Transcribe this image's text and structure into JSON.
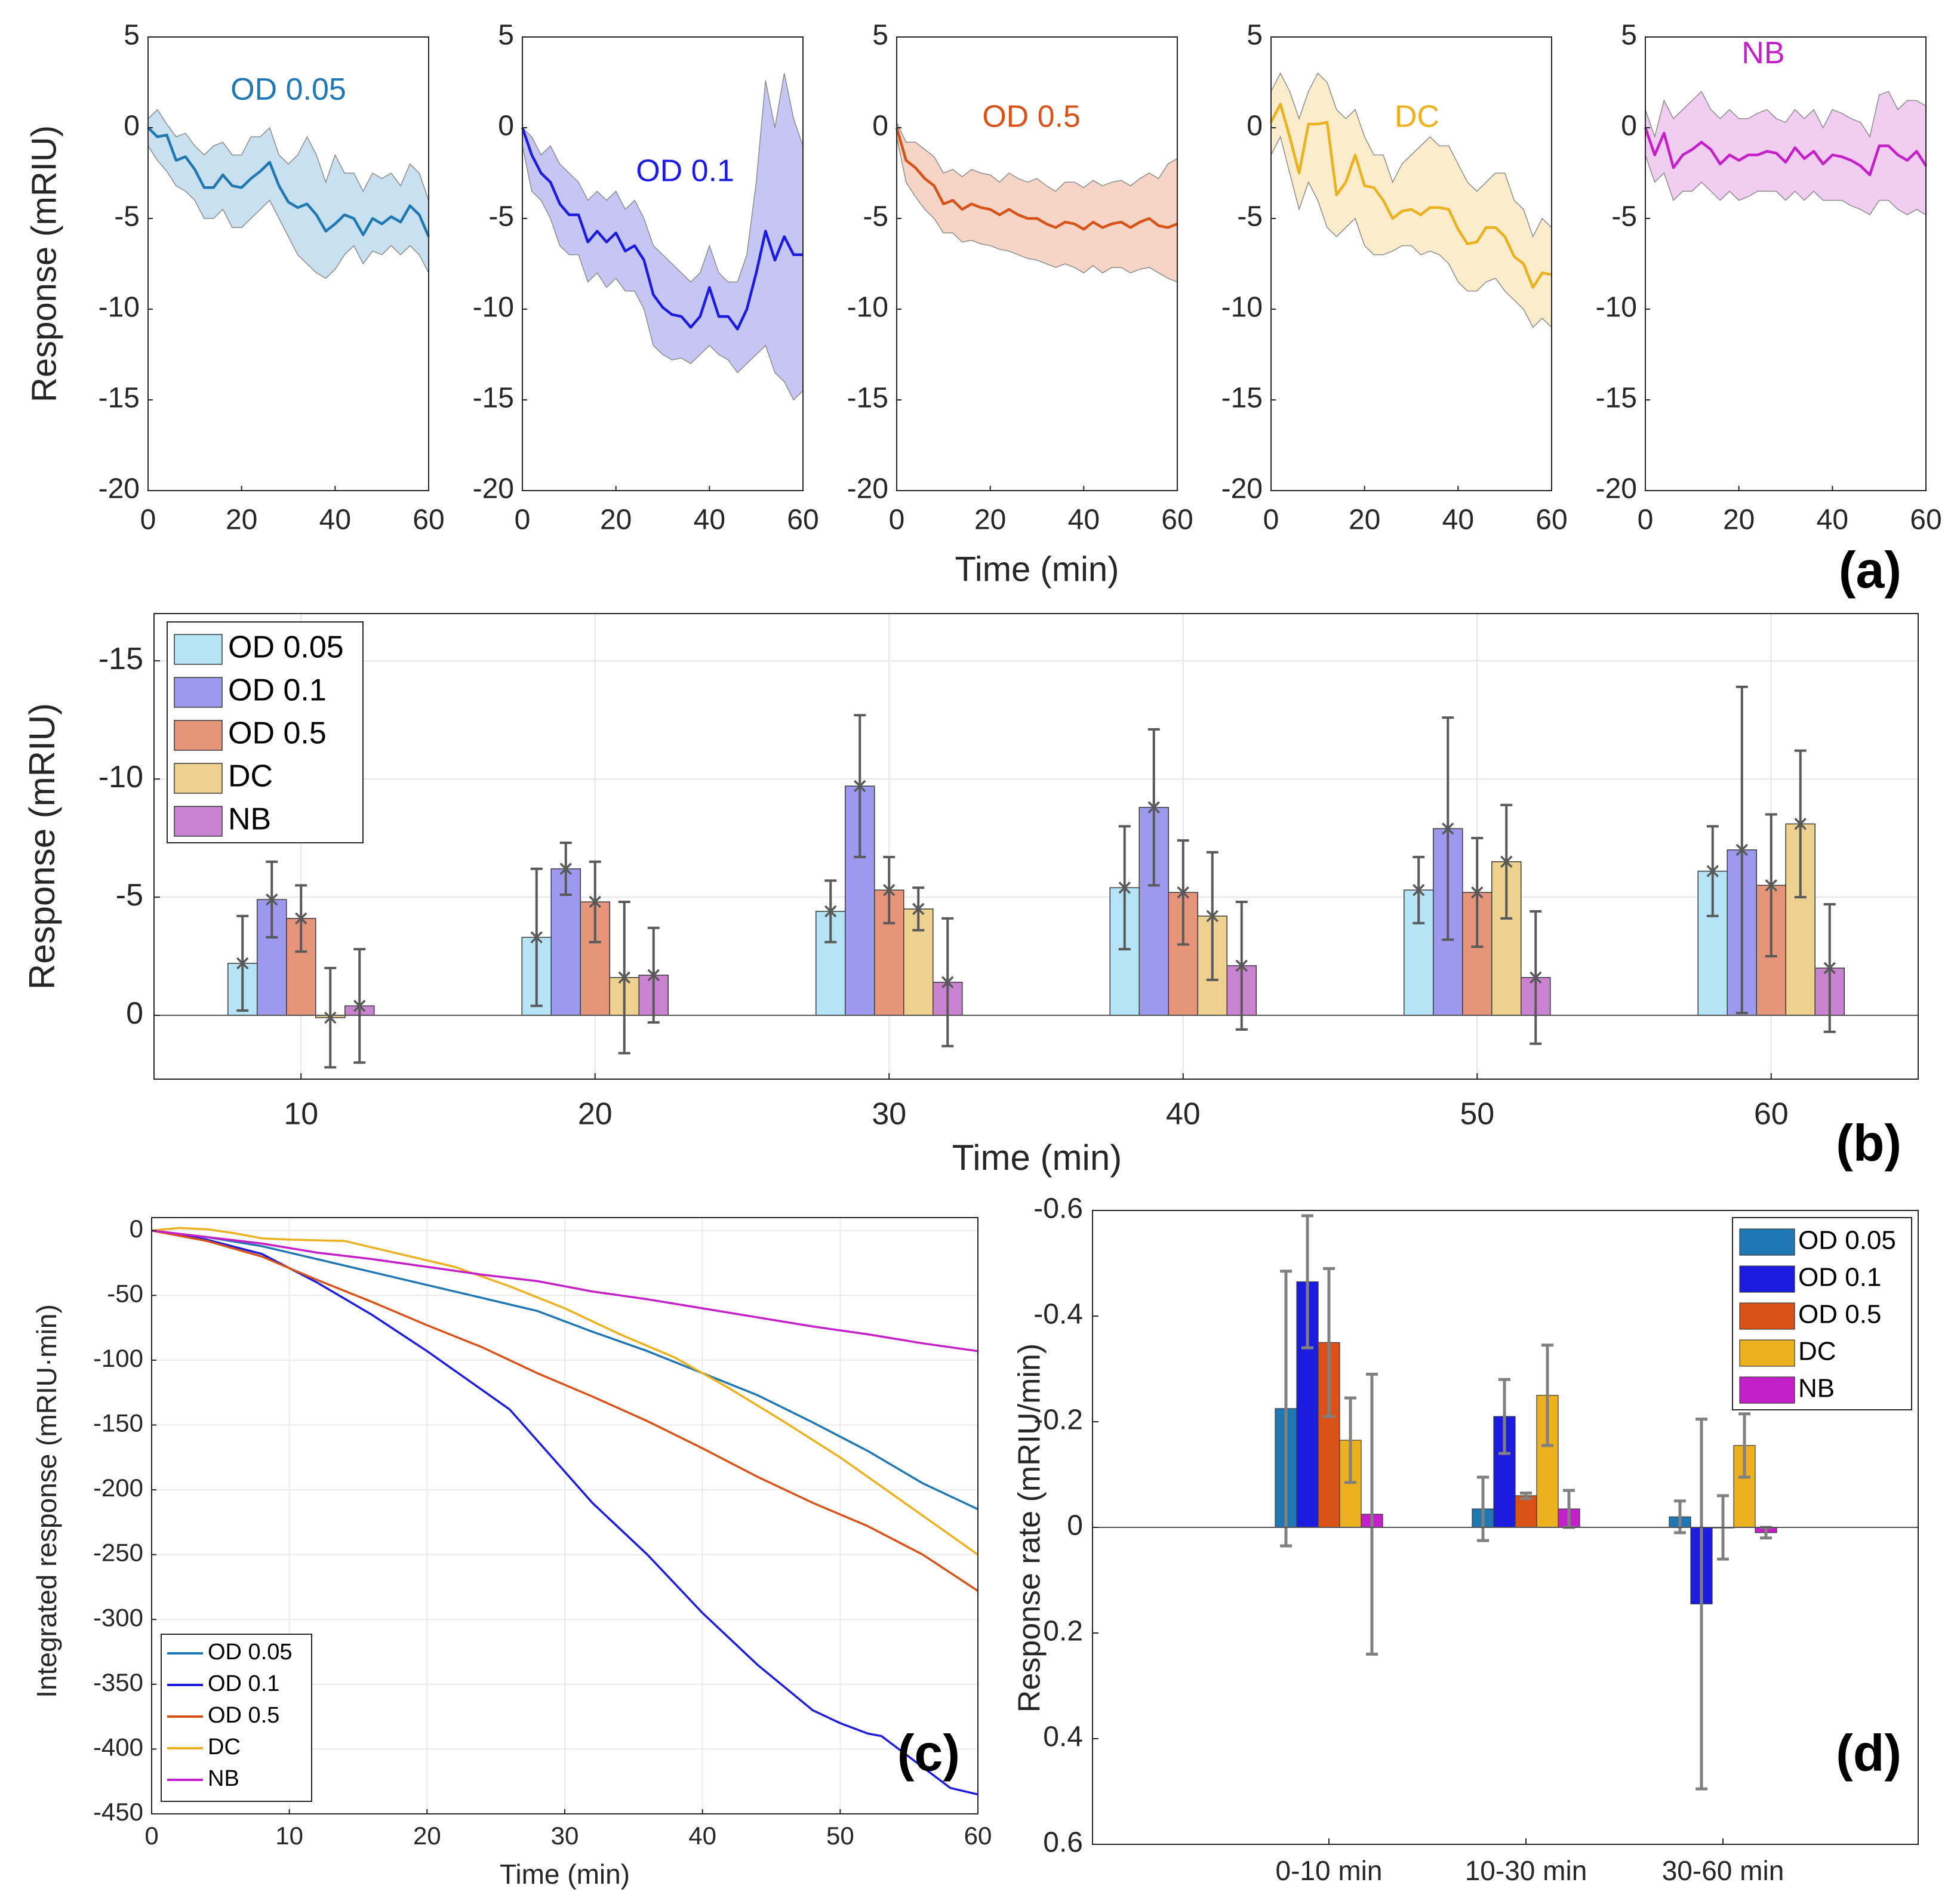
{
  "colors": {
    "OD 0.05": "#1f78b4",
    "OD 0.1": "#1c1ce0",
    "OD 0.5": "#d95319",
    "DC": "#edb120",
    "NB": "#c51fc9",
    "lightB": {
      "OD 0.05": "#b5e4f7",
      "OD 0.1": "#9c99ef",
      "OD 0.5": "#e6957a",
      "DC": "#efd18f",
      "NB": "#c983d0"
    },
    "bandA": {
      "OD 0.05": "#c8e0ef",
      "OD 0.1": "#c6c6f5",
      "OD 0.5": "#f6d5c7",
      "DC": "#fbeccb",
      "NB": "#f2cdf2"
    },
    "errB": "#595959",
    "errD": "#808080"
  },
  "chart_data": [
    {
      "panel": "a",
      "type": "line",
      "panel_label": "(a)",
      "xlabel": "Time (min)",
      "ylabel": "Response (mRIU)",
      "xlim": [
        0,
        60
      ],
      "ylim": [
        -20,
        5
      ],
      "xticks": [
        0,
        20,
        40,
        60
      ],
      "yticks": [
        5,
        0,
        -5,
        -10,
        -15,
        -20
      ],
      "x": [
        0,
        2,
        4,
        6,
        8,
        10,
        12,
        14,
        16,
        18,
        20,
        22,
        24,
        26,
        28,
        30,
        32,
        34,
        36,
        38,
        40,
        42,
        44,
        46,
        48,
        50,
        52,
        54,
        56,
        58,
        60
      ],
      "series": [
        {
          "name": "OD 0.05",
          "mean": [
            0,
            -0.5,
            -0.4,
            -1.8,
            -1.6,
            -2.3,
            -3.3,
            -3.3,
            -2.6,
            -3.2,
            -3.3,
            -2.8,
            -2.4,
            -1.9,
            -3.2,
            -4.1,
            -4.4,
            -4.2,
            -4.8,
            -5.7,
            -5.3,
            -4.8,
            -5.0,
            -5.9,
            -5.0,
            -5.3,
            -4.9,
            -5.2,
            -4.3,
            -4.8,
            -6.0
          ],
          "lower": [
            -1.0,
            -1.8,
            -2.4,
            -3.2,
            -3.5,
            -4.0,
            -5.0,
            -5.0,
            -4.5,
            -5.5,
            -5.5,
            -5.0,
            -4.5,
            -4.0,
            -5.0,
            -6.0,
            -7.0,
            -7.5,
            -8.0,
            -8.3,
            -7.8,
            -7.0,
            -6.5,
            -7.5,
            -6.8,
            -7.0,
            -6.5,
            -7.0,
            -6.5,
            -7.0,
            -8.0
          ],
          "upper": [
            0.5,
            1.0,
            0.2,
            -0.5,
            -0.3,
            -1.0,
            -1.5,
            -1.0,
            -0.8,
            -1.5,
            -1.5,
            -0.5,
            -0.5,
            0.0,
            -1.5,
            -2.0,
            -1.5,
            -0.5,
            -1.5,
            -3.0,
            -1.5,
            -2.5,
            -2.5,
            -3.5,
            -2.5,
            -2.8,
            -2.5,
            -3.2,
            -2.0,
            -2.5,
            -4.0
          ]
        },
        {
          "name": "OD 0.1",
          "mean": [
            0,
            -1.5,
            -2.5,
            -3.0,
            -4.2,
            -4.8,
            -4.8,
            -6.3,
            -5.7,
            -6.3,
            -5.8,
            -6.8,
            -6.5,
            -7.3,
            -9.2,
            -9.9,
            -10.3,
            -10.4,
            -11.0,
            -10.4,
            -8.8,
            -10.4,
            -10.4,
            -11.1,
            -10.0,
            -8.0,
            -5.7,
            -7.3,
            -6.0,
            -7.0,
            -7.0
          ],
          "lower": [
            -1.0,
            -3.5,
            -4.0,
            -5.0,
            -6.5,
            -7.0,
            -7.0,
            -8.5,
            -8.0,
            -8.8,
            -8.3,
            -9.0,
            -9.0,
            -10.0,
            -12.0,
            -12.5,
            -12.8,
            -12.7,
            -13.0,
            -12.5,
            -12.0,
            -12.5,
            -12.8,
            -13.5,
            -13.0,
            -12.5,
            -12.0,
            -13.5,
            -14.0,
            -15.0,
            -14.5
          ],
          "upper": [
            0,
            -0.5,
            -1.5,
            -1.0,
            -2.0,
            -2.5,
            -3.0,
            -4.0,
            -3.5,
            -4.0,
            -3.5,
            -4.5,
            -4.0,
            -5.0,
            -6.5,
            -7.0,
            -7.5,
            -8.0,
            -8.5,
            -8.0,
            -6.5,
            -8.0,
            -8.5,
            -8.5,
            -7.0,
            -3.0,
            2.6,
            0.0,
            3.0,
            0.5,
            -1.0
          ]
        },
        {
          "name": "OD 0.5",
          "mean": [
            0,
            -1.8,
            -2.2,
            -2.8,
            -3.2,
            -4.2,
            -4.0,
            -4.5,
            -4.2,
            -4.4,
            -4.5,
            -4.8,
            -4.5,
            -4.8,
            -5.0,
            -5.0,
            -5.3,
            -5.5,
            -5.2,
            -5.3,
            -5.6,
            -5.2,
            -5.5,
            -5.3,
            -5.2,
            -5.5,
            -5.2,
            -5.0,
            -5.4,
            -5.5,
            -5.3
          ],
          "lower": [
            -0.5,
            -3.0,
            -3.8,
            -4.5,
            -5.0,
            -5.8,
            -5.8,
            -6.3,
            -6.2,
            -6.4,
            -6.5,
            -6.7,
            -6.8,
            -7.0,
            -7.2,
            -7.3,
            -7.5,
            -7.7,
            -7.5,
            -7.7,
            -8.0,
            -7.6,
            -8.0,
            -7.7,
            -7.7,
            -8.0,
            -7.8,
            -7.7,
            -8.0,
            -8.3,
            -8.5
          ],
          "upper": [
            0.3,
            -0.8,
            -0.8,
            -1.2,
            -1.6,
            -2.5,
            -2.3,
            -2.7,
            -2.3,
            -2.5,
            -2.6,
            -3.0,
            -2.5,
            -2.8,
            -3.0,
            -2.8,
            -3.2,
            -3.5,
            -3.0,
            -3.0,
            -3.3,
            -2.9,
            -3.2,
            -3.0,
            -2.9,
            -3.2,
            -2.8,
            -2.5,
            -2.8,
            -2.0,
            -1.7
          ]
        },
        {
          "name": "DC",
          "mean": [
            0.3,
            1.3,
            -0.5,
            -2.5,
            0.2,
            0.2,
            0.3,
            -3.7,
            -3.0,
            -1.5,
            -3.2,
            -3.3,
            -4.0,
            -5.0,
            -4.6,
            -4.5,
            -4.8,
            -4.4,
            -4.4,
            -4.5,
            -5.6,
            -6.4,
            -6.3,
            -5.5,
            -5.5,
            -6.0,
            -7.1,
            -7.5,
            -8.8,
            -8.0,
            -8.1
          ],
          "lower": [
            -1.5,
            -0.5,
            -2.5,
            -4.5,
            -3.0,
            -4.0,
            -5.5,
            -6.0,
            -5.5,
            -5.0,
            -6.5,
            -7.0,
            -7.0,
            -6.8,
            -6.5,
            -6.5,
            -7.0,
            -6.8,
            -7.0,
            -7.5,
            -8.5,
            -9.0,
            -9.0,
            -8.5,
            -8.3,
            -9.0,
            -9.5,
            -10.0,
            -11.0,
            -10.5,
            -11.0
          ],
          "upper": [
            2.0,
            3.0,
            2.0,
            0.5,
            2.0,
            3.0,
            2.5,
            1.0,
            0.5,
            1.0,
            -0.5,
            -1.5,
            -1.5,
            -3.0,
            -2.0,
            -1.5,
            -1.0,
            -0.5,
            -1.0,
            -1.0,
            -2.0,
            -3.0,
            -3.5,
            -3.0,
            -2.5,
            -2.5,
            -4.0,
            -4.5,
            -6.0,
            -5.0,
            -5.5
          ]
        },
        {
          "name": "NB",
          "mean": [
            0,
            -1.5,
            -0.3,
            -2.2,
            -1.5,
            -1.2,
            -0.8,
            -1.2,
            -2.0,
            -1.5,
            -1.8,
            -1.5,
            -1.5,
            -1.3,
            -1.4,
            -1.9,
            -1.1,
            -1.7,
            -1.3,
            -2.0,
            -1.5,
            -1.6,
            -1.8,
            -2.1,
            -2.6,
            -1.0,
            -1.0,
            -1.5,
            -1.8,
            -1.3,
            -2.1
          ],
          "lower": [
            -1.5,
            -3.0,
            -2.5,
            -4.0,
            -3.5,
            -3.5,
            -3.0,
            -3.5,
            -4.0,
            -3.5,
            -4.0,
            -3.8,
            -3.5,
            -3.5,
            -3.5,
            -4.0,
            -3.5,
            -4.0,
            -3.5,
            -4.0,
            -4.0,
            -4.0,
            -4.3,
            -4.5,
            -4.8,
            -4.0,
            -4.0,
            -4.5,
            -4.8,
            -4.5,
            -4.8
          ],
          "upper": [
            1.0,
            -0.5,
            1.5,
            0.5,
            1.0,
            1.5,
            2.0,
            1.0,
            0.5,
            1.0,
            0.5,
            0.5,
            0.8,
            1.0,
            0.5,
            0.3,
            1.0,
            0.5,
            1.0,
            0.0,
            1.0,
            0.8,
            0.5,
            0.3,
            -0.5,
            1.8,
            2.0,
            1.0,
            1.5,
            1.5,
            1.2
          ]
        }
      ]
    },
    {
      "panel": "b",
      "type": "bar",
      "panel_label": "(b)",
      "xlabel": "Time (min)",
      "ylabel": "Response (mRIU)",
      "categories": [
        "10",
        "20",
        "30",
        "40",
        "50",
        "60"
      ],
      "xlim": [
        5,
        65
      ],
      "ylim": [
        -17,
        2.7
      ],
      "y_axis_reversed": true,
      "yticks": [
        -15,
        -10,
        -5,
        0
      ],
      "ytick_labels": [
        "-15",
        "-10",
        "-5",
        "0"
      ],
      "legend": [
        "OD 0.05",
        "OD 0.1",
        "OD 0.5",
        "DC",
        "NB"
      ],
      "legend_position": "top-left",
      "grid": true,
      "series": [
        {
          "name": "OD 0.05",
          "values": [
            -2.2,
            -3.3,
            -4.4,
            -5.4,
            -5.3,
            -6.1
          ],
          "err": [
            2.0,
            2.9,
            1.3,
            2.6,
            1.4,
            1.9
          ]
        },
        {
          "name": "OD 0.1",
          "values": [
            -4.9,
            -6.2,
            -9.7,
            -8.8,
            -7.9,
            -7.0
          ],
          "err": [
            1.6,
            1.1,
            3.0,
            3.3,
            4.7,
            6.9
          ]
        },
        {
          "name": "OD 0.5",
          "values": [
            -4.1,
            -4.8,
            -5.3,
            -5.2,
            -5.2,
            -5.5
          ],
          "err": [
            1.4,
            1.7,
            1.4,
            2.2,
            2.3,
            3.0
          ]
        },
        {
          "name": "DC",
          "values": [
            0.1,
            -1.6,
            -4.5,
            -4.2,
            -6.5,
            -8.1
          ],
          "err": [
            2.1,
            3.2,
            0.9,
            2.7,
            2.4,
            3.1
          ]
        },
        {
          "name": "NB",
          "values": [
            -0.4,
            -1.7,
            -1.4,
            -2.1,
            -1.6,
            -2.0
          ],
          "err": [
            2.4,
            2.0,
            2.7,
            2.7,
            2.8,
            2.7
          ]
        }
      ]
    },
    {
      "panel": "c",
      "type": "line",
      "panel_label": "(c)",
      "xlabel": "Time (min)",
      "ylabel": "Integrated response (mRIU·min)",
      "xlim": [
        0,
        60
      ],
      "ylim": [
        -450,
        10
      ],
      "xticks": [
        0,
        10,
        20,
        30,
        40,
        50,
        60
      ],
      "yticks": [
        0,
        -50,
        -100,
        -150,
        -200,
        -250,
        -300,
        -350,
        -400,
        -450
      ],
      "grid": true,
      "legend": [
        "OD 0.05",
        "OD 0.1",
        "OD 0.5",
        "DC",
        "NB"
      ],
      "legend_position": "bottom-left",
      "series": [
        {
          "name": "OD 0.05",
          "x": [
            0,
            4,
            8,
            12,
            16,
            20,
            24,
            26,
            28,
            32,
            36,
            40,
            44,
            48,
            52,
            56,
            60
          ],
          "y": [
            0,
            -5,
            -12,
            -22,
            -32,
            -42,
            -52,
            -57,
            -62,
            -78,
            -93,
            -110,
            -127,
            -148,
            -170,
            -195,
            -215
          ]
        },
        {
          "name": "OD 0.1",
          "x": [
            0,
            4,
            8,
            12,
            16,
            20,
            24,
            26,
            28,
            32,
            36,
            40,
            44,
            48,
            50,
            52,
            53,
            58,
            60
          ],
          "y": [
            0,
            -7,
            -18,
            -40,
            -65,
            -93,
            -123,
            -138,
            -162,
            -210,
            -250,
            -295,
            -335,
            -370,
            -380,
            -388,
            -390,
            -430,
            -435
          ]
        },
        {
          "name": "OD 0.5",
          "x": [
            0,
            4,
            8,
            12,
            16,
            20,
            24,
            28,
            32,
            36,
            40,
            44,
            48,
            52,
            56,
            60
          ],
          "y": [
            0,
            -8,
            -20,
            -38,
            -55,
            -73,
            -90,
            -110,
            -128,
            -147,
            -168,
            -190,
            -210,
            -228,
            -250,
            -278
          ]
        },
        {
          "name": "DC",
          "x": [
            0,
            2,
            4,
            6,
            8,
            10,
            14,
            18,
            22,
            26,
            30,
            34,
            38,
            42,
            46,
            50,
            52,
            56,
            60
          ],
          "y": [
            0,
            2,
            1,
            -2,
            -6,
            -7,
            -8,
            -18,
            -28,
            -43,
            -60,
            -80,
            -98,
            -122,
            -148,
            -175,
            -190,
            -220,
            -250
          ]
        },
        {
          "name": "NB",
          "x": [
            0,
            4,
            8,
            12,
            16,
            20,
            24,
            28,
            32,
            36,
            40,
            44,
            48,
            52,
            56,
            60
          ],
          "y": [
            0,
            -5,
            -10,
            -17,
            -22,
            -28,
            -34,
            -39,
            -47,
            -53,
            -60,
            -67,
            -74,
            -80,
            -87,
            -93
          ]
        }
      ]
    },
    {
      "panel": "d",
      "type": "bar",
      "panel_label": "(d)",
      "ylabel": "Response rate (mRIU/min)",
      "categories": [
        "0-10 min",
        "10-30 min",
        "30-60 min"
      ],
      "ylim": [
        -0.6,
        0.6
      ],
      "y_axis_reversed": true,
      "yticks": [
        -0.6,
        -0.4,
        -0.2,
        0,
        0.2,
        0.4,
        0.6
      ],
      "ytick_labels": [
        "-0.6",
        "-0.4",
        "-0.2",
        "0",
        "0.2",
        "0.4",
        "0.6"
      ],
      "legend": [
        "OD 0.05",
        "OD 0.1",
        "OD 0.5",
        "DC",
        "NB"
      ],
      "legend_position": "top-right",
      "series": [
        {
          "name": "OD 0.05",
          "values": [
            -0.225,
            -0.035,
            -0.02
          ],
          "err": [
            0.26,
            0.06,
            0.03
          ]
        },
        {
          "name": "OD 0.1",
          "values": [
            -0.465,
            -0.21,
            0.145
          ],
          "err": [
            0.125,
            0.07,
            0.35
          ]
        },
        {
          "name": "OD 0.5",
          "values": [
            -0.35,
            -0.06,
            0.0
          ],
          "err": [
            0.14,
            0.005,
            0.06
          ]
        },
        {
          "name": "DC",
          "values": [
            -0.165,
            -0.25,
            -0.155
          ],
          "err": [
            0.08,
            0.095,
            0.06
          ]
        },
        {
          "name": "NB",
          "values": [
            -0.025,
            -0.035,
            0.01
          ],
          "err": [
            0.265,
            0.035,
            0.01
          ]
        }
      ]
    }
  ]
}
